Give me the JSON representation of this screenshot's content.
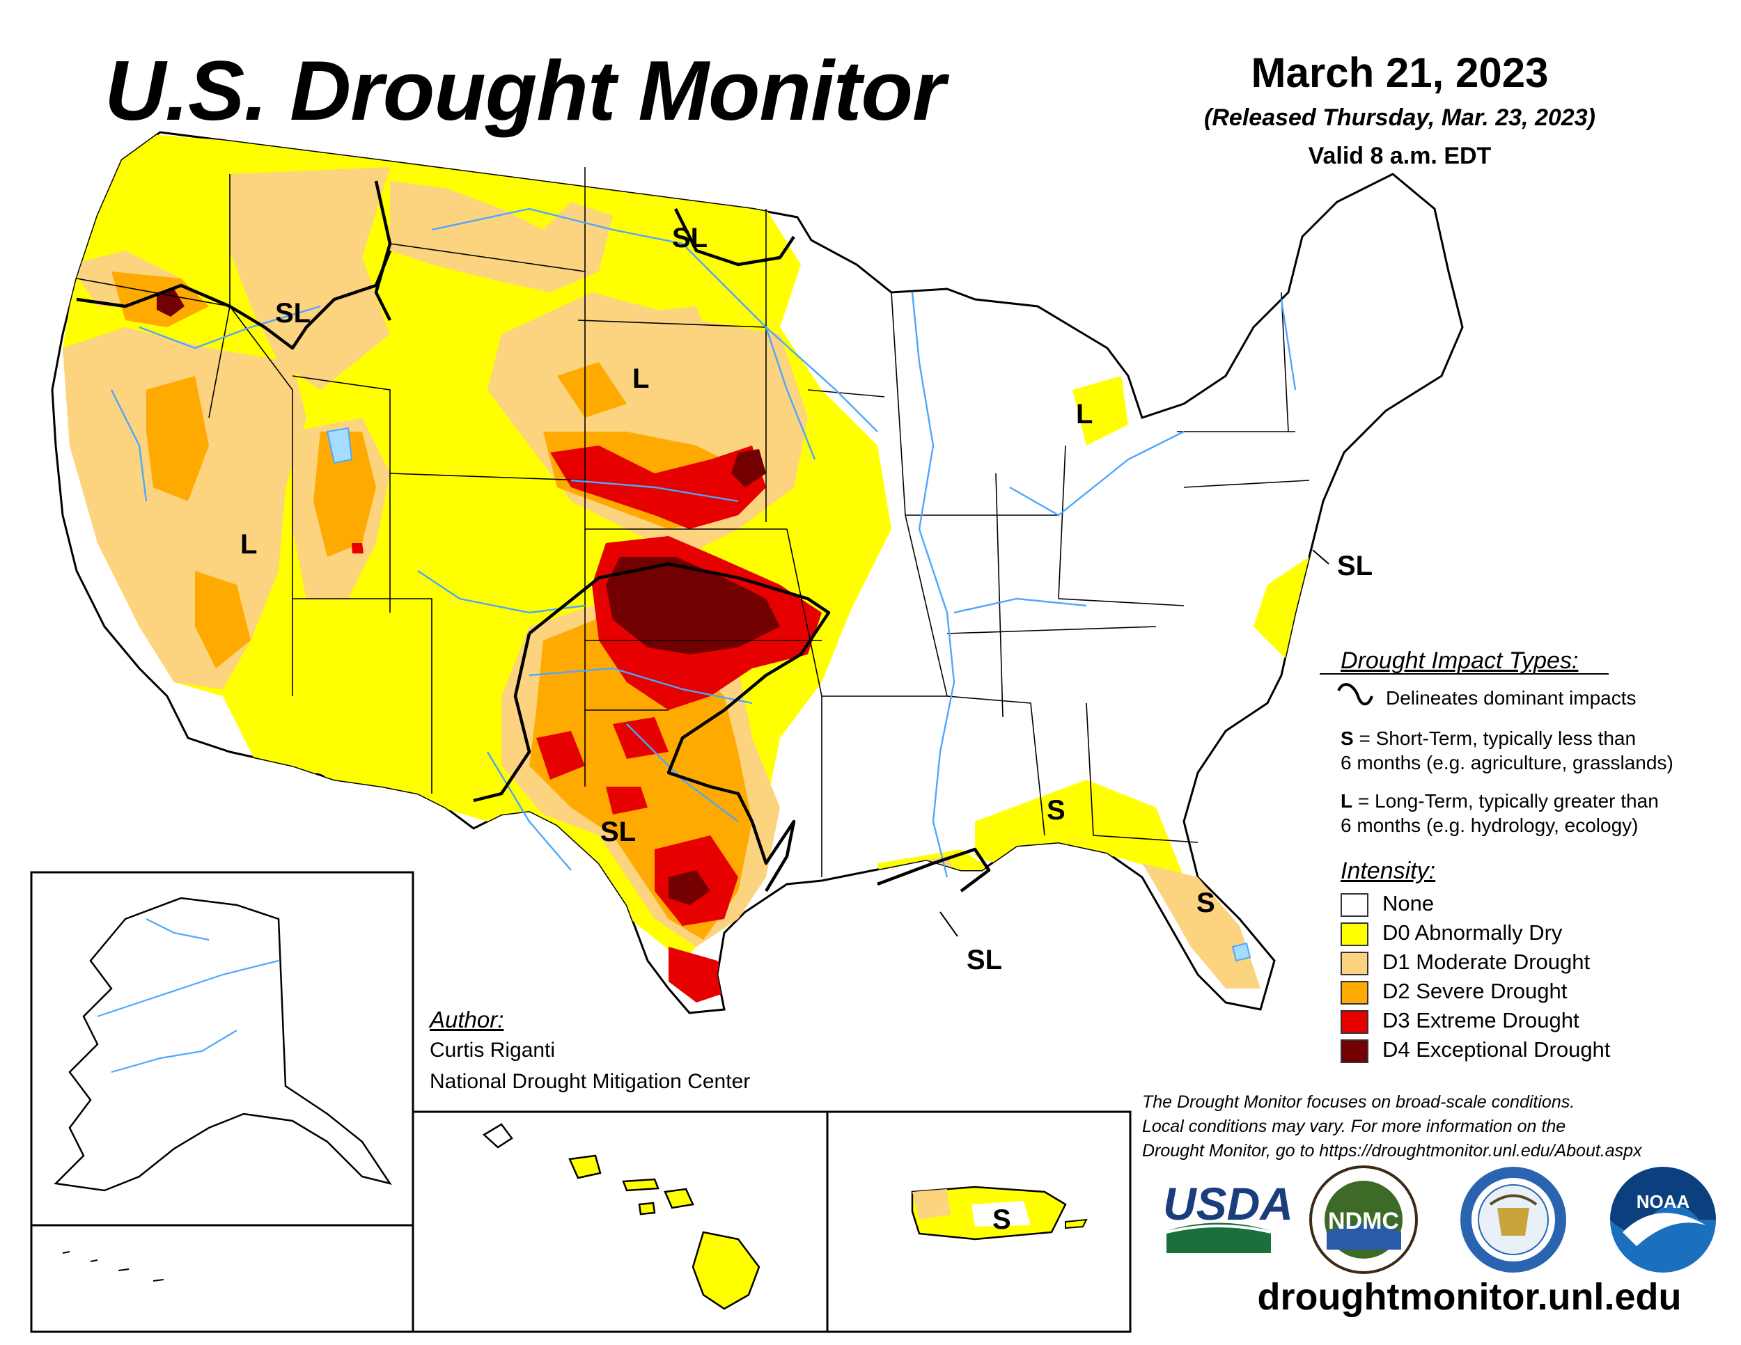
{
  "header": {
    "title": "U.S. Drought Monitor",
    "date": "March 21, 2023",
    "released": "(Released Thursday, Mar. 23, 2023)",
    "valid": "Valid 8 a.m. EDT"
  },
  "colors": {
    "none": "#ffffff",
    "d0": "#ffff00",
    "d1": "#fcd37f",
    "d2": "#ffaa00",
    "d3": "#e60000",
    "d4": "#730000",
    "water": "#4da6ff",
    "lake": "#a6dcff"
  },
  "map": {
    "impact_labels": [
      {
        "id": "nw-oregon-idaho",
        "text": "SL"
      },
      {
        "id": "north-dakota",
        "text": "SL"
      },
      {
        "id": "south-dakota",
        "text": "L"
      },
      {
        "id": "nevada",
        "text": "L"
      },
      {
        "id": "michigan",
        "text": "L"
      },
      {
        "id": "mid-atlantic",
        "text": "SL"
      },
      {
        "id": "texas",
        "text": "SL"
      },
      {
        "id": "gulf-coast",
        "text": "SL"
      },
      {
        "id": "alabama",
        "text": "S"
      },
      {
        "id": "florida",
        "text": "S"
      },
      {
        "id": "puerto-rico",
        "text": "S"
      }
    ]
  },
  "legend": {
    "impact_title": "Drought Impact Types:",
    "delineates": "Delineates dominant impacts",
    "s_key": "S",
    "s_text_1": " = Short-Term, typically less than",
    "s_text_2": "6 months (e.g. agriculture, grasslands)",
    "l_key": "L",
    "l_text_1": " = Long-Term, typically greater than",
    "l_text_2": "6 months (e.g. hydrology, ecology)",
    "intensity_title": "Intensity:",
    "categories": [
      {
        "label": "None",
        "color": "#ffffff"
      },
      {
        "label": "D0 Abnormally Dry",
        "color": "#ffff00"
      },
      {
        "label": "D1 Moderate Drought",
        "color": "#fcd37f"
      },
      {
        "label": "D2 Severe Drought",
        "color": "#ffaa00"
      },
      {
        "label": "D3 Extreme Drought",
        "color": "#e60000"
      },
      {
        "label": "D4 Exceptional Drought",
        "color": "#730000"
      }
    ]
  },
  "author": {
    "heading": "Author:",
    "name": "Curtis Riganti",
    "org": "National Drought Mitigation Center"
  },
  "disclaimer": {
    "line1": "The Drought Monitor focuses on broad-scale conditions.",
    "line2": "Local conditions may vary. For more information on the",
    "line3": "Drought Monitor, go to https://droughtmonitor.unl.edu/About.aspx"
  },
  "logos": {
    "usda": "USDA",
    "ndmc": "NDMC",
    "noaa": "NOAA"
  },
  "website": "droughtmonitor.unl.edu"
}
